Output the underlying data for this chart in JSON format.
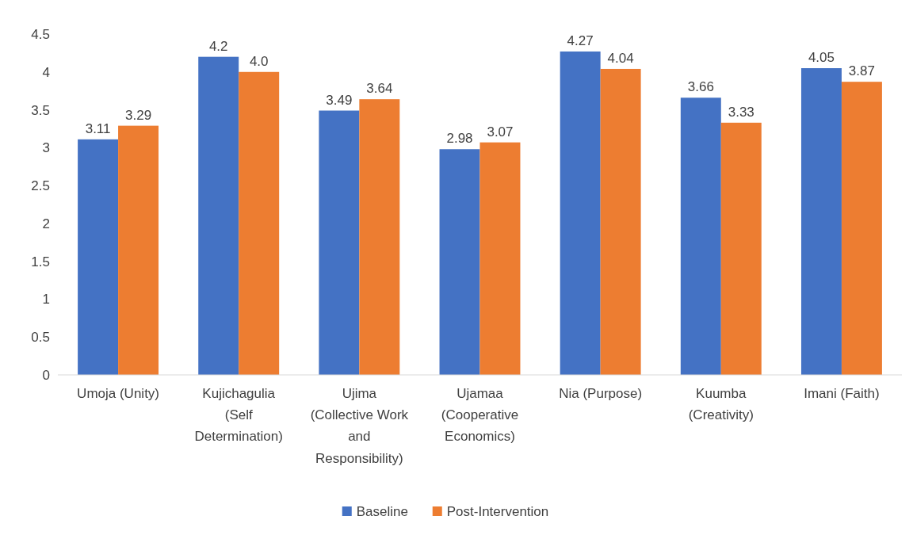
{
  "chart_data": {
    "type": "bar",
    "categories": [
      "Umoja (Unity)",
      "Kujichagulia (Self Determination)",
      "Ujima (Collective Work and Responsibility)",
      "Ujamaa (Cooperative Economics)",
      "Nia (Purpose)",
      "Kuumba (Creativity)",
      "Imani (Faith)"
    ],
    "series": [
      {
        "name": "Baseline",
        "color": "#4472c4",
        "values": [
          3.11,
          4.2,
          3.49,
          2.98,
          4.27,
          3.66,
          4.05
        ],
        "value_labels": [
          "3.11",
          "4.2",
          "3.49",
          "2.98",
          "4.27",
          "3.66",
          "4.05"
        ]
      },
      {
        "name": "Post-Intervention",
        "color": "#ed7d31",
        "values": [
          3.29,
          4.0,
          3.64,
          3.07,
          4.04,
          3.33,
          3.87
        ],
        "value_labels": [
          "3.29",
          "4.0",
          "3.64",
          "3.07",
          "4.04",
          "3.33",
          "3.87"
        ]
      }
    ],
    "ylim": [
      0,
      4.5
    ],
    "yticks": [
      0,
      0.5,
      1,
      1.5,
      2,
      2.5,
      3,
      3.5,
      4,
      4.5
    ],
    "grid": false,
    "legend": "bottom"
  }
}
